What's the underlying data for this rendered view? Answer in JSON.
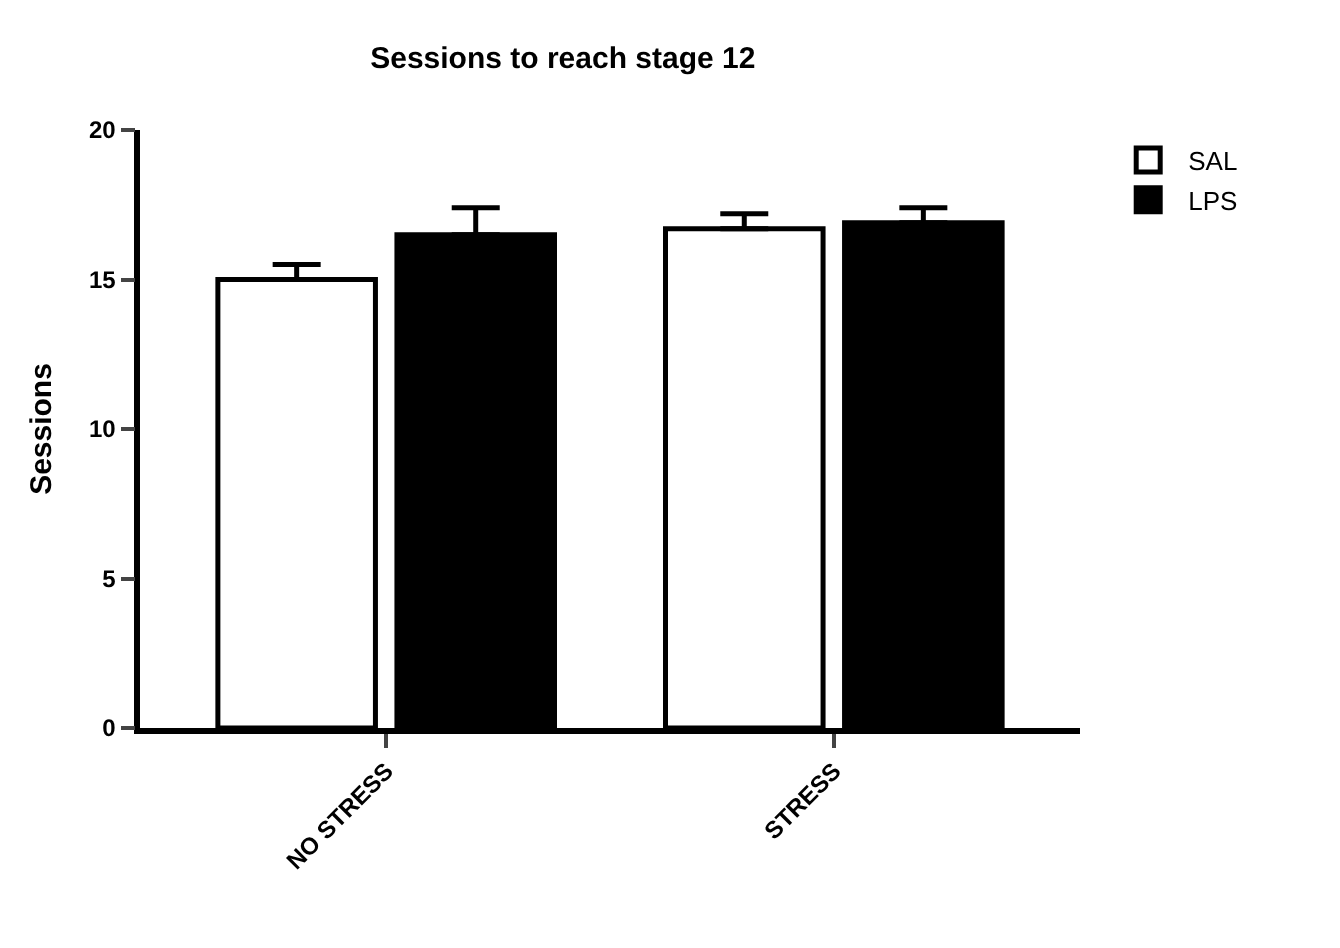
{
  "chart_data": {
    "type": "bar",
    "title": "Sessions to reach stage 12",
    "ylabel": "Sessions",
    "categories": [
      "NO STRESS",
      "STRESS"
    ],
    "series": [
      {
        "name": "SAL",
        "color": "#ffffff",
        "values": [
          15.0,
          16.7
        ],
        "errors": [
          [
            15.0,
            15.5
          ],
          [
            16.7,
            17.2
          ]
        ]
      },
      {
        "name": "LPS",
        "color": "#000000",
        "values": [
          16.5,
          16.9
        ],
        "errors": [
          [
            16.5,
            17.4
          ],
          [
            16.9,
            17.4
          ]
        ]
      }
    ],
    "ylim": [
      0,
      20
    ],
    "yticks": [
      0,
      5,
      10,
      15,
      20
    ],
    "grid": false,
    "legend": "top right"
  }
}
